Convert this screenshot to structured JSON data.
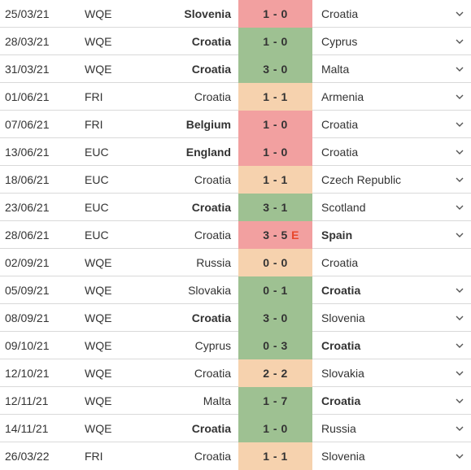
{
  "colors": {
    "win": "#9ec192",
    "loss": "#f2a0a0",
    "draw": "#f6d2ae",
    "extra_time": "#e8472b"
  },
  "matches": [
    {
      "date": "25/03/21",
      "comp": "WQE",
      "home": "Slovenia",
      "score": "1 - 0",
      "away": "Croatia",
      "result": "loss",
      "bold": "home",
      "chevron": true
    },
    {
      "date": "28/03/21",
      "comp": "WQE",
      "home": "Croatia",
      "score": "1 - 0",
      "away": "Cyprus",
      "result": "win",
      "bold": "home",
      "chevron": true
    },
    {
      "date": "31/03/21",
      "comp": "WQE",
      "home": "Croatia",
      "score": "3 - 0",
      "away": "Malta",
      "result": "win",
      "bold": "home",
      "chevron": true
    },
    {
      "date": "01/06/21",
      "comp": "FRI",
      "home": "Croatia",
      "score": "1 - 1",
      "away": "Armenia",
      "result": "draw",
      "bold": "",
      "chevron": true
    },
    {
      "date": "07/06/21",
      "comp": "FRI",
      "home": "Belgium",
      "score": "1 - 0",
      "away": "Croatia",
      "result": "loss",
      "bold": "home",
      "chevron": true
    },
    {
      "date": "13/06/21",
      "comp": "EUC",
      "home": "England",
      "score": "1 - 0",
      "away": "Croatia",
      "result": "loss",
      "bold": "home",
      "chevron": true
    },
    {
      "date": "18/06/21",
      "comp": "EUC",
      "home": "Croatia",
      "score": "1 - 1",
      "away": "Czech Republic",
      "result": "draw",
      "bold": "",
      "chevron": true
    },
    {
      "date": "23/06/21",
      "comp": "EUC",
      "home": "Croatia",
      "score": "3 - 1",
      "away": "Scotland",
      "result": "win",
      "bold": "home",
      "chevron": true
    },
    {
      "date": "28/06/21",
      "comp": "EUC",
      "home": "Croatia",
      "score": "3 - 5",
      "away": "Spain",
      "result": "loss",
      "bold": "away",
      "chevron": true,
      "tag": "E"
    },
    {
      "date": "02/09/21",
      "comp": "WQE",
      "home": "Russia",
      "score": "0 - 0",
      "away": "Croatia",
      "result": "draw",
      "bold": "",
      "chevron": false
    },
    {
      "date": "05/09/21",
      "comp": "WQE",
      "home": "Slovakia",
      "score": "0 - 1",
      "away": "Croatia",
      "result": "win",
      "bold": "away",
      "chevron": true
    },
    {
      "date": "08/09/21",
      "comp": "WQE",
      "home": "Croatia",
      "score": "3 - 0",
      "away": "Slovenia",
      "result": "win",
      "bold": "home",
      "chevron": true
    },
    {
      "date": "09/10/21",
      "comp": "WQE",
      "home": "Cyprus",
      "score": "0 - 3",
      "away": "Croatia",
      "result": "win",
      "bold": "away",
      "chevron": true
    },
    {
      "date": "12/10/21",
      "comp": "WQE",
      "home": "Croatia",
      "score": "2 - 2",
      "away": "Slovakia",
      "result": "draw",
      "bold": "",
      "chevron": true
    },
    {
      "date": "12/11/21",
      "comp": "WQE",
      "home": "Malta",
      "score": "1 - 7",
      "away": "Croatia",
      "result": "win",
      "bold": "away",
      "chevron": true
    },
    {
      "date": "14/11/21",
      "comp": "WQE",
      "home": "Croatia",
      "score": "1 - 0",
      "away": "Russia",
      "result": "win",
      "bold": "home",
      "chevron": true
    },
    {
      "date": "26/03/22",
      "comp": "FRI",
      "home": "Croatia",
      "score": "1 - 1",
      "away": "Slovenia",
      "result": "draw",
      "bold": "",
      "chevron": true
    }
  ]
}
